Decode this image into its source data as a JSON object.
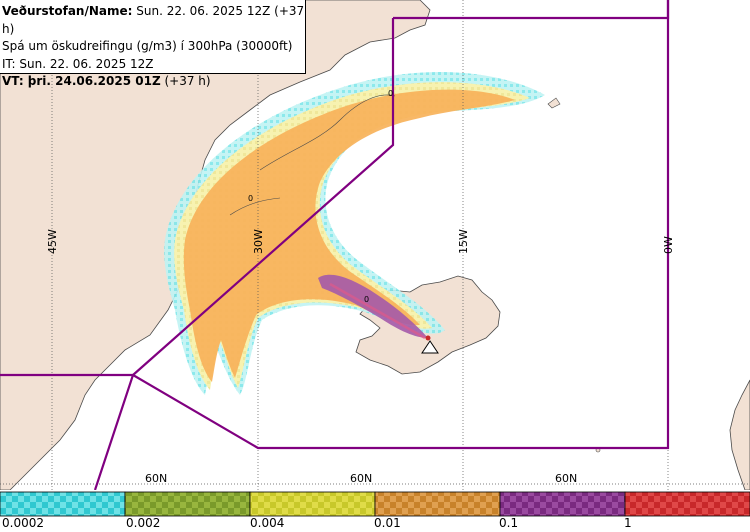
{
  "header": {
    "line1_label": "Veðurstofan/Name:",
    "line1_value": "Sun. 22. 06. 2025 12Z (+37 h)",
    "line2": "Spá um öskudreifingu (g/m3) í 300hPa (30000ft)",
    "line3": "IT: Sun. 22. 06. 2025 12Z",
    "line4_label": "VT: þri. 24.06.2025 01Z",
    "line4_value": "(+37 h)"
  },
  "map": {
    "longitude_labels": [
      "45W",
      "30W",
      "15W",
      "0W"
    ],
    "latitude_labels": [
      "60N",
      "60N",
      "60N"
    ],
    "contour_labels": [
      "0",
      "0",
      "0"
    ],
    "colors": {
      "ocean": "#ffffff",
      "land": "#f2e1d4",
      "coast": "#4a4a4a",
      "boundary": "#800080",
      "grid": "#333333"
    }
  },
  "legend": {
    "tick_labels": [
      "0.0002",
      "0.002",
      "0.004",
      "0.01",
      "0.1",
      "1"
    ],
    "bins": [
      {
        "range": "0.0002–0.002",
        "color": "#30c8d0",
        "color2": "#6fe2e6"
      },
      {
        "range": "0.002–0.004",
        "color": "#7a9a2a",
        "color2": "#98b63e"
      },
      {
        "range": "0.004–0.01",
        "color": "#c8c82a",
        "color2": "#e0dc48"
      },
      {
        "range": "0.01–0.1",
        "color": "#c8822a",
        "color2": "#e0a050"
      },
      {
        "range": "0.1–1",
        "color": "#7a2a80",
        "color2": "#9a4aa0"
      },
      {
        "range": ">1",
        "color": "#c8282a",
        "color2": "#e04848"
      }
    ]
  }
}
